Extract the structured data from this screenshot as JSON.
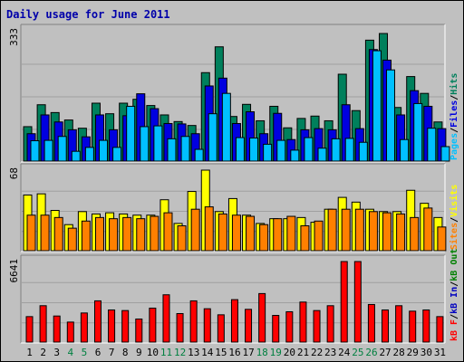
{
  "chart_data": {
    "type": "bar",
    "title": "Daily usage for June 2011",
    "x": [
      "1",
      "2",
      "3",
      "4",
      "5",
      "6",
      "7",
      "8",
      "9",
      "10",
      "11",
      "12",
      "13",
      "14",
      "15",
      "16",
      "17",
      "18",
      "19",
      "20",
      "21",
      "22",
      "23",
      "24",
      "25",
      "26",
      "27",
      "28",
      "29",
      "30",
      "31"
    ],
    "weekend_days": [
      4,
      5,
      11,
      12,
      18,
      19,
      25,
      26
    ],
    "colors": {
      "hits": "#00805c",
      "files": "#0000e0",
      "pages": "#00c0ff",
      "visits": "#ffff00",
      "sites": "#ff8000",
      "kb_in": "#0000c0",
      "kb_out": "#008000",
      "kb_f": "#ff0000",
      "weekday_label": "#000000",
      "weekend_label": "#008040"
    },
    "panels": [
      {
        "id": "hits_files_pages",
        "ymax_label": "333",
        "ylim": [
          0,
          333
        ],
        "legend_right": [
          {
            "text": "Pages",
            "color": "#00c0ff"
          },
          {
            "text": "/",
            "color": "#000000"
          },
          {
            "text": "Files",
            "color": "#0000e0"
          },
          {
            "text": "/",
            "color": "#000000"
          },
          {
            "text": "Hits",
            "color": "#00805c"
          }
        ],
        "series": [
          {
            "name": "Hits",
            "color": "#00805c",
            "values": [
              88,
              144,
              124,
              105,
              84,
              148,
              121,
              148,
              158,
              142,
              118,
              101,
              91,
              226,
              292,
              114,
              145,
              103,
              140,
              85,
              109,
              115,
              103,
              222,
              129,
              309,
              326,
              137,
              216,
              173,
              100
            ]
          },
          {
            "name": "Files",
            "color": "#0000e0",
            "values": [
              70,
              118,
              100,
              80,
              62,
              118,
              80,
              116,
              172,
              134,
              96,
              95,
              70,
              192,
              212,
              96,
              126,
              70,
              122,
              55,
              80,
              83,
              80,
              144,
              83,
              285,
              258,
              118,
              180,
              140,
              83
            ]
          },
          {
            "name": "Pages",
            "color": "#00c0ff",
            "values": [
              52,
              53,
              63,
              25,
              35,
              53,
              35,
              140,
              88,
              90,
              57,
              63,
              30,
              121,
              173,
              60,
              59,
              43,
              53,
              28,
              60,
              33,
              57,
              58,
              48,
              282,
              233,
              55,
              147,
              84,
              37
            ]
          }
        ]
      },
      {
        "id": "visits_sites",
        "ymax_label": "68",
        "ylim": [
          0,
          68
        ],
        "legend_right": [
          {
            "text": "Sites",
            "color": "#ff8000"
          },
          {
            "text": "/",
            "color": "#000000"
          },
          {
            "text": "Visits",
            "color": "#ffff00"
          }
        ],
        "series": [
          {
            "name": "Visits",
            "color": "#ffff00",
            "values": [
              47,
              48,
              34,
              22,
              33,
              31,
              32,
              31,
              30,
              30,
              43,
              23,
              50,
              68,
              33,
              44,
              30,
              23,
              27,
              27,
              28,
              24,
              35,
              45,
              41,
              35,
              33,
              33,
              51,
              40,
              28
            ]
          },
          {
            "name": "Sites",
            "color": "#ff8000",
            "values": [
              30,
              30,
              28,
              19,
              25,
              28,
              27,
              28,
              27,
              29,
              32,
              21,
              35,
              37,
              31,
              30,
              29,
              22,
              27,
              29,
              21,
              25,
              35,
              35,
              35,
              33,
              32,
              31,
              28,
              36,
              20
            ]
          }
        ]
      },
      {
        "id": "kbytes",
        "ymax_label": "6641",
        "ylim": [
          0,
          6641
        ],
        "legend_right": [
          {
            "text": "kB F",
            "color": "#ff0000"
          },
          {
            "text": "/",
            "color": "#000000"
          },
          {
            "text": "kB In",
            "color": "#0000c0"
          },
          {
            "text": "/",
            "color": "#000000"
          },
          {
            "text": "kB Out",
            "color": "#008000"
          }
        ],
        "series": [
          {
            "name": "kB F",
            "color": "#ff0000",
            "values": [
              2100,
              3000,
              2150,
              1650,
              2400,
              3400,
              2650,
              2600,
              1900,
              2800,
              3900,
              2350,
              3400,
              2750,
              2250,
              3500,
              2700,
              4000,
              2200,
              2500,
              3300,
              2600,
              3000,
              6641,
              6641,
              3100,
              2650,
              3000,
              2550,
              2650,
              2100
            ]
          }
        ]
      }
    ]
  }
}
